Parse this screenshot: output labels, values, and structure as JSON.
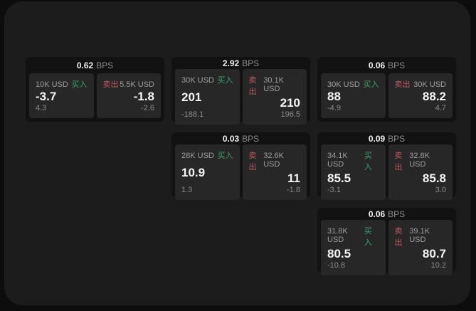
{
  "labels": {
    "bps_unit": "BPS",
    "buy": "买入",
    "sell": "卖出"
  },
  "colors": {
    "page_background": "#0d0d0d",
    "panel_background": "#1c1c1c",
    "card_background": "#121212",
    "side_panel_background": "#272727",
    "buy_accent": "#3ca06c",
    "sell_accent": "#c25866"
  },
  "cards": [
    {
      "bps": "0.62",
      "buy": {
        "amount": "10K USD",
        "price": "-3.7",
        "change": "4.3"
      },
      "sell": {
        "amount": "5.5K USD",
        "price": "-1.8",
        "change": "-2.6"
      }
    },
    {
      "bps": "2.92",
      "buy": {
        "amount": "30K USD",
        "price": "201",
        "change": "-188.1"
      },
      "sell": {
        "amount": "30.1K USD",
        "price": "210",
        "change": "196.5"
      }
    },
    {
      "bps": "0.06",
      "buy": {
        "amount": "30K USD",
        "price": "88",
        "change": "-4.9"
      },
      "sell": {
        "amount": "30K USD",
        "price": "88.2",
        "change": "4.7"
      }
    },
    {
      "bps": "0.03",
      "buy": {
        "amount": "28K USD",
        "price": "10.9",
        "change": "1.3"
      },
      "sell": {
        "amount": "32.6K USD",
        "price": "11",
        "change": "-1.8"
      }
    },
    {
      "bps": "0.09",
      "buy": {
        "amount": "34.1K USD",
        "price": "85.5",
        "change": "-3.1"
      },
      "sell": {
        "amount": "32.8K USD",
        "price": "85.8",
        "change": "3.0"
      }
    },
    {
      "bps": "0.06",
      "buy": {
        "amount": "31.8K USD",
        "price": "80.5",
        "change": "-10.8"
      },
      "sell": {
        "amount": "39.1K USD",
        "price": "80.7",
        "change": "10.2"
      }
    }
  ]
}
